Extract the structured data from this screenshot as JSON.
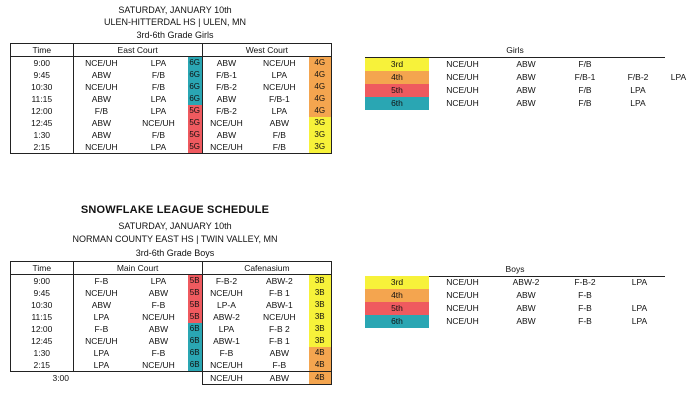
{
  "colors": {
    "yellow": "#f7f23a",
    "orange": "#f4a54f",
    "red": "#ef5a5f",
    "teal": "#2aa6b3"
  },
  "girls": {
    "day": "SATURDAY, JANUARY 10th",
    "venue": "ULEN-HITTERDAL HS | ULEN, MN",
    "division": "3rd-6th Grade Girls",
    "time_header": "Time",
    "court1_header": "East Court",
    "court2_header": "West Court",
    "rows": [
      {
        "time": "9:00",
        "c1a": "NCE/UH",
        "c1b": "LPA",
        "c1code": "6G",
        "c1color": "teal",
        "c2a": "ABW",
        "c2b": "NCE/UH",
        "c2code": "4G",
        "c2color": "orange"
      },
      {
        "time": "9:45",
        "c1a": "ABW",
        "c1b": "F/B",
        "c1code": "6G",
        "c1color": "teal",
        "c2a": "F/B-1",
        "c2b": "LPA",
        "c2code": "4G",
        "c2color": "orange"
      },
      {
        "time": "10:30",
        "c1a": "NCE/UH",
        "c1b": "F/B",
        "c1code": "6G",
        "c1color": "teal",
        "c2a": "F/B-2",
        "c2b": "NCE/UH",
        "c2code": "4G",
        "c2color": "orange"
      },
      {
        "time": "11:15",
        "c1a": "ABW",
        "c1b": "LPA",
        "c1code": "6G",
        "c1color": "teal",
        "c2a": "ABW",
        "c2b": "F/B-1",
        "c2code": "4G",
        "c2color": "orange"
      },
      {
        "time": "12:00",
        "c1a": "F/B",
        "c1b": "LPA",
        "c1code": "5G",
        "c1color": "red",
        "c2a": "F/B-2",
        "c2b": "LPA",
        "c2code": "4G",
        "c2color": "orange"
      },
      {
        "time": "12:45",
        "c1a": "ABW",
        "c1b": "NCE/UH",
        "c1code": "5G",
        "c1color": "red",
        "c2a": "NCE/UH",
        "c2b": "ABW",
        "c2code": "3G",
        "c2color": "yellow"
      },
      {
        "time": "1:30",
        "c1a": "ABW",
        "c1b": "F/B",
        "c1code": "5G",
        "c1color": "red",
        "c2a": "ABW",
        "c2b": "F/B",
        "c2code": "3G",
        "c2color": "yellow"
      },
      {
        "time": "2:15",
        "c1a": "NCE/UH",
        "c1b": "LPA",
        "c1code": "5G",
        "c1color": "red",
        "c2a": "NCE/UH",
        "c2b": "F/B",
        "c2code": "3G",
        "c2color": "yellow"
      }
    ],
    "legend_title": "Girls",
    "legend": [
      {
        "grade": "3rd",
        "color": "yellow",
        "teams": [
          "NCE/UH",
          "ABW",
          "F/B",
          "",
          ""
        ]
      },
      {
        "grade": "4th",
        "color": "orange",
        "teams": [
          "NCE/UH",
          "ABW",
          "F/B-1",
          "F/B-2",
          "LPA"
        ]
      },
      {
        "grade": "5th",
        "color": "red",
        "teams": [
          "NCE/UH",
          "ABW",
          "F/B",
          "LPA",
          ""
        ]
      },
      {
        "grade": "6th",
        "color": "teal",
        "teams": [
          "NCE/UH",
          "ABW",
          "F/B",
          "LPA",
          ""
        ]
      }
    ]
  },
  "boys": {
    "title": "SNOWFLAKE LEAGUE SCHEDULE",
    "day": "SATURDAY, JANUARY 10th",
    "venue": "NORMAN COUNTY EAST HS | TWIN VALLEY, MN",
    "division": "3rd-6th Grade Boys",
    "time_header": "Time",
    "court1_header": "Main Court",
    "court2_header": "Cafenasium",
    "rows": [
      {
        "time": "9:00",
        "c1a": "F-B",
        "c1b": "LPA",
        "c1code": "5B",
        "c1color": "red",
        "c2a": "F-B-2",
        "c2b": "ABW-2",
        "c2code": "3B",
        "c2color": "yellow"
      },
      {
        "time": "9:45",
        "c1a": "NCE/UH",
        "c1b": "ABW",
        "c1code": "5B",
        "c1color": "red",
        "c2a": "NCE/UH",
        "c2b": "F-B 1",
        "c2code": "3B",
        "c2color": "yellow"
      },
      {
        "time": "10:30",
        "c1a": "ABW",
        "c1b": "F-B",
        "c1code": "5B",
        "c1color": "red",
        "c2a": "LP-A",
        "c2b": "ABW-1",
        "c2code": "3B",
        "c2color": "yellow"
      },
      {
        "time": "11:15",
        "c1a": "LPA",
        "c1b": "NCE/UH",
        "c1code": "5B",
        "c1color": "red",
        "c2a": "ABW-2",
        "c2b": "NCE/UH",
        "c2code": "3B",
        "c2color": "yellow"
      },
      {
        "time": "12:00",
        "c1a": "F-B",
        "c1b": "ABW",
        "c1code": "6B",
        "c1color": "teal",
        "c2a": "LPA",
        "c2b": "F-B 2",
        "c2code": "3B",
        "c2color": "yellow"
      },
      {
        "time": "12:45",
        "c1a": "NCE/UH",
        "c1b": "ABW",
        "c1code": "6B",
        "c1color": "teal",
        "c2a": "ABW-1",
        "c2b": "F-B 1",
        "c2code": "3B",
        "c2color": "yellow"
      },
      {
        "time": "1:30",
        "c1a": "LPA",
        "c1b": "F-B",
        "c1code": "6B",
        "c1color": "teal",
        "c2a": "F-B",
        "c2b": "ABW",
        "c2code": "4B",
        "c2color": "orange"
      },
      {
        "time": "2:15",
        "c1a": "LPA",
        "c1b": "NCE/UH",
        "c1code": "6B",
        "c1color": "teal",
        "c2a": "NCE/UH",
        "c2b": "F-B",
        "c2code": "4B",
        "c2color": "orange"
      }
    ],
    "extra_row": {
      "time": "3:00",
      "c2a": "NCE/UH",
      "c2b": "ABW",
      "c2code": "4B",
      "c2color": "orange"
    },
    "legend_title": "Boys",
    "legend": [
      {
        "grade": "3rd",
        "color": "yellow",
        "teams": [
          "NCE/UH",
          "ABW-2",
          "F-B-2",
          "LPA"
        ]
      },
      {
        "grade": "4th",
        "color": "orange",
        "teams": [
          "NCE/UH",
          "ABW",
          "F-B",
          ""
        ]
      },
      {
        "grade": "5th",
        "color": "red",
        "teams": [
          "NCE/UH",
          "ABW",
          "F-B",
          "LPA"
        ]
      },
      {
        "grade": "6th",
        "color": "teal",
        "teams": [
          "NCE/UH",
          "ABW",
          "F-B",
          "LPA"
        ]
      }
    ]
  }
}
